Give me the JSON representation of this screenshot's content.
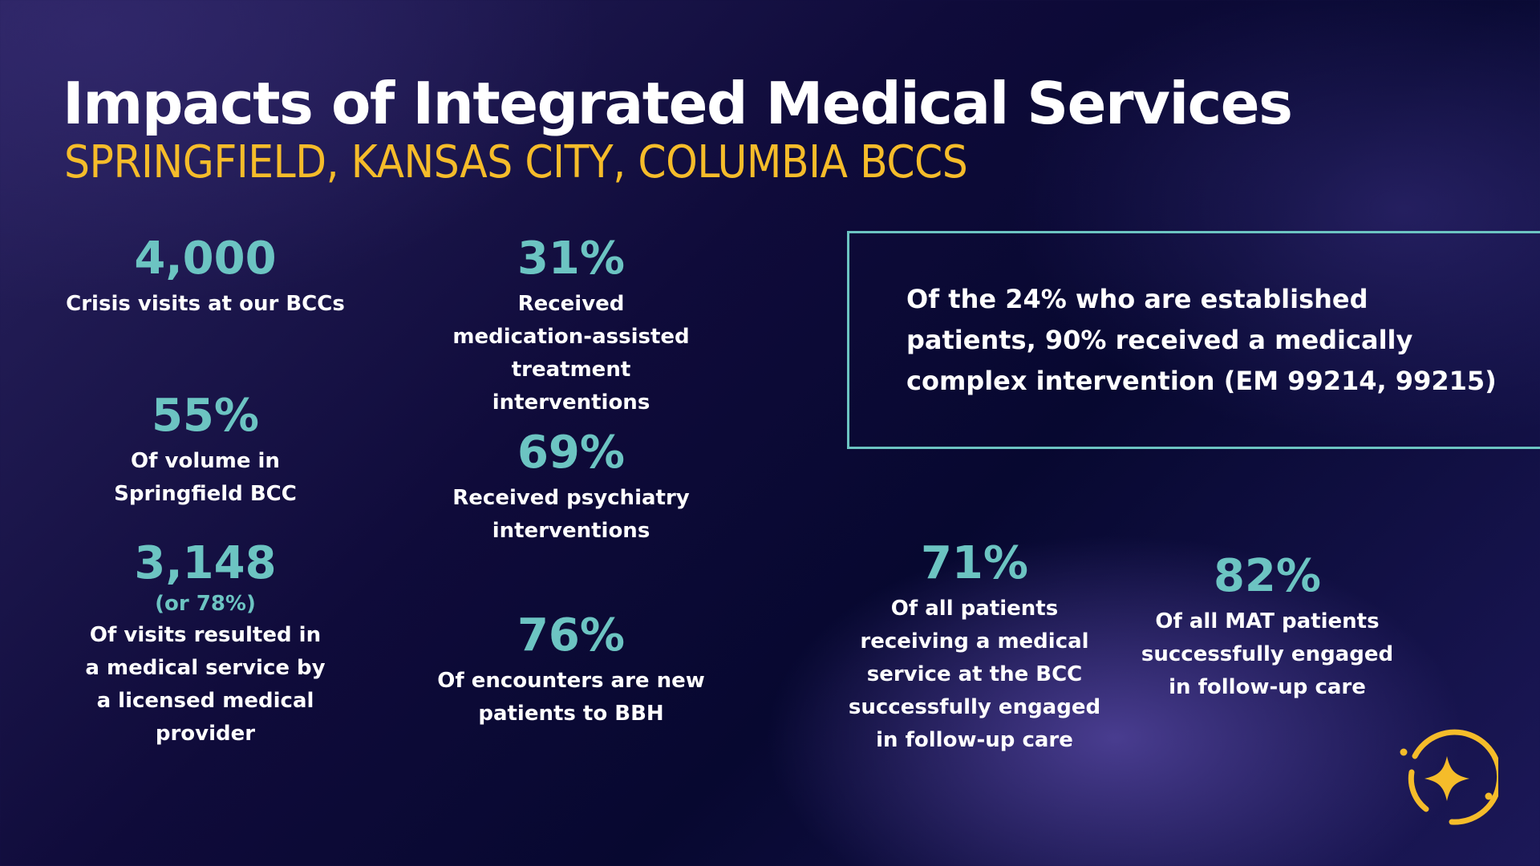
{
  "slide": {
    "title": "Impacts of Integrated Medical Services",
    "subtitle": "SPRINGFIELD, KANSAS CITY, COLUMBIA BCCS"
  },
  "stats": {
    "crisis_visits": {
      "value": "4,000",
      "label": "Crisis visits at our BCCs"
    },
    "springfield_volume": {
      "value": "55%",
      "label": "Of volume in Springfield BCC"
    },
    "medical_service": {
      "value": "3,148",
      "note": "(or 78%)",
      "label": "Of visits resulted in a medical service by a licensed medical provider"
    },
    "mat_interventions": {
      "value": "31%",
      "label": "Received medication-assisted treatment interventions"
    },
    "psychiatry": {
      "value": "69%",
      "label": "Received psychiatry interventions"
    },
    "new_patients": {
      "value": "76%",
      "label": "Of encounters are new patients to BBH"
    },
    "medical_followup": {
      "value": "71%",
      "label": "Of all patients receiving a medical service at the BCC successfully engaged in follow-up care"
    },
    "mat_followup": {
      "value": "82%",
      "label": "Of all MAT patients successfully engaged in follow-up care"
    }
  },
  "callout": {
    "text": "Of the 24% who are established patients, 90% received a medically complex intervention (EM 99214, 99215)"
  },
  "colors": {
    "accent_teal": "#6cc4c2",
    "accent_yellow": "#f5bc2a",
    "text": "#ffffff",
    "background": "#0f0b3a"
  },
  "logo": {
    "icon": "sparkle-icon"
  }
}
